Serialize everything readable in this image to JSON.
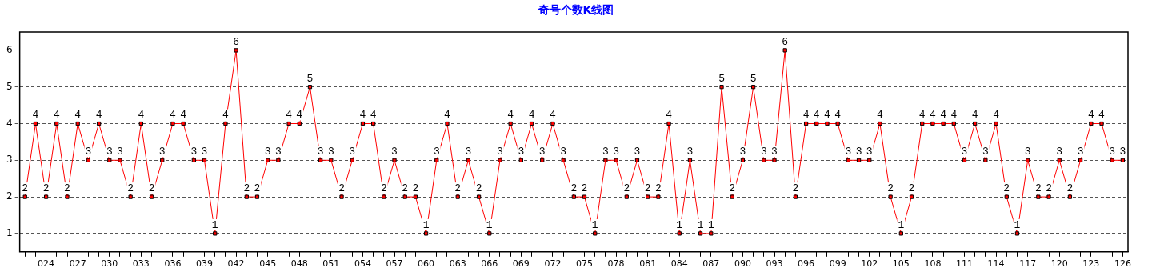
{
  "chart_data": {
    "type": "line",
    "title": "奇号个数K线图",
    "categories": [
      null,
      null,
      "024",
      null,
      null,
      "027",
      null,
      null,
      "030",
      null,
      null,
      "033",
      null,
      null,
      "036",
      null,
      null,
      "039",
      null,
      null,
      "042",
      null,
      null,
      "045",
      null,
      null,
      "048",
      null,
      null,
      "051",
      null,
      null,
      "054",
      null,
      null,
      "057",
      null,
      null,
      "060",
      null,
      null,
      "063",
      null,
      null,
      "066",
      null,
      null,
      "069",
      null,
      null,
      "072",
      null,
      null,
      "075",
      null,
      null,
      "078",
      null,
      null,
      "081",
      null,
      null,
      "084",
      null,
      null,
      "087",
      null,
      null,
      "090",
      null,
      null,
      "093",
      null,
      null,
      "096",
      null,
      null,
      "099",
      null,
      null,
      "102",
      null,
      null,
      "105",
      null,
      null,
      "108",
      null,
      null,
      "111",
      null,
      null,
      "114",
      null,
      null,
      "117",
      null,
      null,
      "120",
      null,
      null,
      "123",
      null,
      null,
      "126"
    ],
    "series": [
      {
        "color": "#ff0000",
        "values": [
          2,
          4,
          2,
          4,
          2,
          4,
          3,
          4,
          3,
          3,
          2,
          4,
          2,
          3,
          4,
          4,
          3,
          3,
          1,
          4,
          6,
          2,
          2,
          3,
          3,
          4,
          4,
          5,
          3,
          3,
          2,
          3,
          4,
          4,
          2,
          3,
          2,
          2,
          1,
          3,
          4,
          2,
          3,
          2,
          1,
          3,
          4,
          3,
          4,
          3,
          4,
          3,
          2,
          2,
          1,
          3,
          3,
          2,
          3,
          2,
          2,
          4,
          1,
          3,
          1,
          1,
          5,
          2,
          3,
          5,
          3,
          3,
          6,
          2,
          4,
          4,
          4,
          4,
          3,
          3,
          3,
          4,
          2,
          1,
          2,
          4,
          4,
          4,
          4,
          3,
          4,
          3,
          4,
          2,
          1,
          3,
          2,
          2,
          3,
          2,
          3,
          4,
          4,
          3,
          3
        ]
      }
    ],
    "ylim": [
      0.5,
      6.5
    ],
    "yticks": [
      1,
      2,
      3,
      4,
      5,
      6
    ],
    "grid": "y",
    "legend": false,
    "marker": "square",
    "line_style": "solid",
    "data_labels": true
  }
}
